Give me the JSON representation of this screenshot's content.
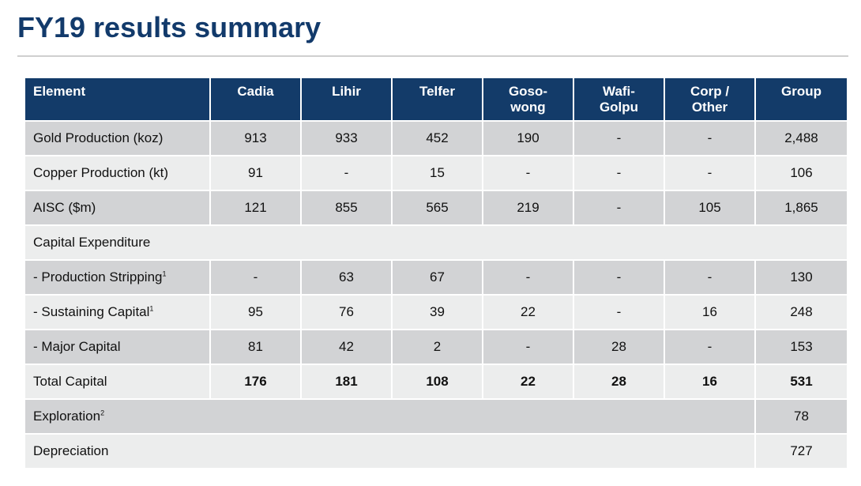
{
  "title": "FY19 results summary",
  "colors": {
    "title": "#123a6b",
    "header_bg": "#133b69",
    "row_dark": "#d2d3d5",
    "row_light": "#eceded"
  },
  "table": {
    "headers": {
      "element": "Element",
      "cadia": "Cadia",
      "lihir": "Lihir",
      "telfer": "Telfer",
      "gosowong_1": "Goso-",
      "gosowong_2": "wong",
      "wafi_1": "Wafi-",
      "wafi_2": "Golpu",
      "corp_1": "Corp /",
      "corp_2": "Other",
      "group": "Group"
    },
    "gold": {
      "label": "Gold Production (koz)",
      "values": [
        "913",
        "933",
        "452",
        "190",
        "-",
        "-",
        "2,488"
      ]
    },
    "copper": {
      "label": "Copper Production (kt)",
      "values": [
        "91",
        "-",
        "15",
        "-",
        "-",
        "-",
        "106"
      ]
    },
    "aisc": {
      "label": "AISC ($m)",
      "values": [
        "121",
        "855",
        "565",
        "219",
        "-",
        "105",
        "1,865"
      ]
    },
    "capex": {
      "label": "Capital Expenditure"
    },
    "stripping": {
      "label": "- Production Stripping",
      "note": "1",
      "values": [
        "-",
        "63",
        "67",
        "-",
        "-",
        "-",
        "130"
      ]
    },
    "sustaining": {
      "label": "- Sustaining Capital",
      "note": "1",
      "values": [
        "95",
        "76",
        "39",
        "22",
        "-",
        "16",
        "248"
      ]
    },
    "major": {
      "label": "- Major Capital",
      "values": [
        "81",
        "42",
        "2",
        "-",
        "28",
        "-",
        "153"
      ]
    },
    "total": {
      "label": "Total Capital",
      "values": [
        "176",
        "181",
        "108",
        "22",
        "28",
        "16",
        "531"
      ]
    },
    "exploration": {
      "label": "Exploration",
      "note": "2",
      "group": "78"
    },
    "depreciation": {
      "label": "Depreciation",
      "group": "727"
    }
  }
}
